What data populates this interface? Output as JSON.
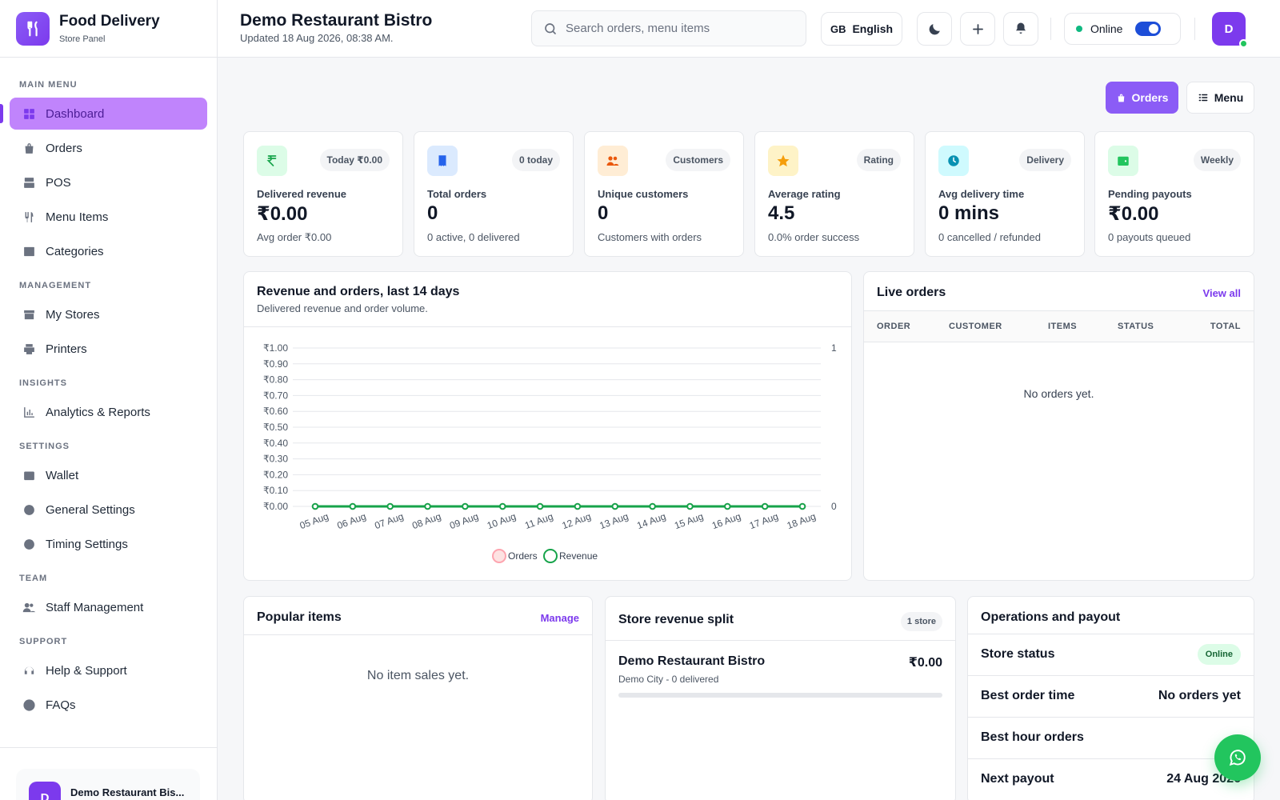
{
  "brand": {
    "title": "Food Delivery",
    "subtitle": "Store Panel"
  },
  "sidebar": {
    "sections": [
      {
        "heading": "MAIN MENU",
        "items": [
          {
            "label": "Dashboard",
            "icon": "dashboard-icon",
            "active": true
          },
          {
            "label": "Orders",
            "icon": "bag-icon"
          },
          {
            "label": "POS",
            "icon": "pos-icon"
          },
          {
            "label": "Menu Items",
            "icon": "utensils-icon"
          },
          {
            "label": "Categories",
            "icon": "list-icon"
          }
        ]
      },
      {
        "heading": "MANAGEMENT",
        "items": [
          {
            "label": "My Stores",
            "icon": "store-icon"
          },
          {
            "label": "Printers",
            "icon": "printer-icon"
          }
        ]
      },
      {
        "heading": "INSIGHTS",
        "items": [
          {
            "label": "Analytics & Reports",
            "icon": "analytics-icon"
          }
        ]
      },
      {
        "heading": "SETTINGS",
        "items": [
          {
            "label": "Wallet",
            "icon": "wallet-icon"
          },
          {
            "label": "General Settings",
            "icon": "gear-icon"
          },
          {
            "label": "Timing Settings",
            "icon": "clock-icon"
          }
        ]
      },
      {
        "heading": "TEAM",
        "items": [
          {
            "label": "Staff Management",
            "icon": "users-icon"
          }
        ]
      },
      {
        "heading": "SUPPORT",
        "items": [
          {
            "label": "Help & Support",
            "icon": "headset-icon"
          },
          {
            "label": "FAQs",
            "icon": "question-icon"
          }
        ]
      }
    ],
    "store_card": {
      "avatar": "D",
      "name": "Demo Restaurant Bis..."
    }
  },
  "header": {
    "title": "Demo Restaurant Bistro",
    "updated": "Updated 18 Aug 2026, 08:38 AM.",
    "search_placeholder": "Search orders, menu items",
    "language_code": "GB",
    "language": "English",
    "status": "Online",
    "avatar": "D"
  },
  "actions": {
    "orders": "Orders",
    "menu": "Menu"
  },
  "colors": {
    "accent": "#8b5cf6",
    "orders_series": "#fda4af",
    "revenue_series": "#16a34a"
  },
  "stats": [
    {
      "badge": "Today ₹0.00",
      "label": "Delivered revenue",
      "value": "₹0.00",
      "note": "Avg order ₹0.00",
      "icon": "rupee-icon"
    },
    {
      "badge": "0 today",
      "label": "Total orders",
      "value": "0",
      "note": "0 active, 0 delivered",
      "icon": "receipt-icon"
    },
    {
      "badge": "Customers",
      "label": "Unique customers",
      "value": "0",
      "note": "Customers with orders",
      "icon": "users-icon"
    },
    {
      "badge": "Rating",
      "label": "Average rating",
      "value": "4.5",
      "note": "0.0% order success",
      "icon": "star-icon"
    },
    {
      "badge": "Delivery",
      "label": "Avg delivery time",
      "value": "0 mins",
      "note": "0 cancelled / refunded",
      "icon": "clock-icon"
    },
    {
      "badge": "Weekly",
      "label": "Pending payouts",
      "value": "₹0.00",
      "note": "0 payouts queued",
      "icon": "wallet-icon"
    }
  ],
  "chart_card": {
    "title": "Revenue and orders, last 14 days",
    "subtitle": "Delivered revenue and order volume."
  },
  "chart_data": {
    "type": "line",
    "categories": [
      "05 Aug",
      "06 Aug",
      "07 Aug",
      "08 Aug",
      "09 Aug",
      "10 Aug",
      "11 Aug",
      "12 Aug",
      "13 Aug",
      "14 Aug",
      "15 Aug",
      "16 Aug",
      "17 Aug",
      "18 Aug"
    ],
    "series": [
      {
        "name": "Orders",
        "axis": "right",
        "values": [
          0,
          0,
          0,
          0,
          0,
          0,
          0,
          0,
          0,
          0,
          0,
          0,
          0,
          0
        ]
      },
      {
        "name": "Revenue",
        "axis": "left",
        "values": [
          0,
          0,
          0,
          0,
          0,
          0,
          0,
          0,
          0,
          0,
          0,
          0,
          0,
          0
        ]
      }
    ],
    "y_left_ticks": [
      "₹0.00",
      "₹0.10",
      "₹0.20",
      "₹0.30",
      "₹0.40",
      "₹0.50",
      "₹0.60",
      "₹0.70",
      "₹0.80",
      "₹0.90",
      "₹1.00"
    ],
    "y_left_range": [
      0,
      1
    ],
    "y_right_ticks": [
      "0",
      "1"
    ],
    "y_right_range": [
      0,
      1
    ],
    "grid": true,
    "legend": "bottom-center"
  },
  "live_orders": {
    "title": "Live orders",
    "view_all": "View all",
    "columns": [
      "ORDER",
      "CUSTOMER",
      "ITEMS",
      "STATUS",
      "TOTAL"
    ],
    "empty": "No orders yet."
  },
  "popular_items": {
    "title": "Popular items",
    "manage": "Manage",
    "empty": "No item sales yet."
  },
  "store_split": {
    "title": "Store revenue split",
    "badge": "1 store",
    "store_name": "Demo Restaurant Bistro",
    "store_meta": "Demo City - 0 delivered",
    "store_revenue": "₹0.00",
    "revenue_share": 0
  },
  "operations": {
    "title": "Operations and payout",
    "rows": [
      {
        "label": "Store status",
        "value": "Online"
      },
      {
        "label": "Best order time",
        "value": "No orders yet"
      },
      {
        "label": "Best hour orders",
        "value": ""
      },
      {
        "label": "Next payout",
        "value": "24 Aug 2026"
      }
    ]
  }
}
